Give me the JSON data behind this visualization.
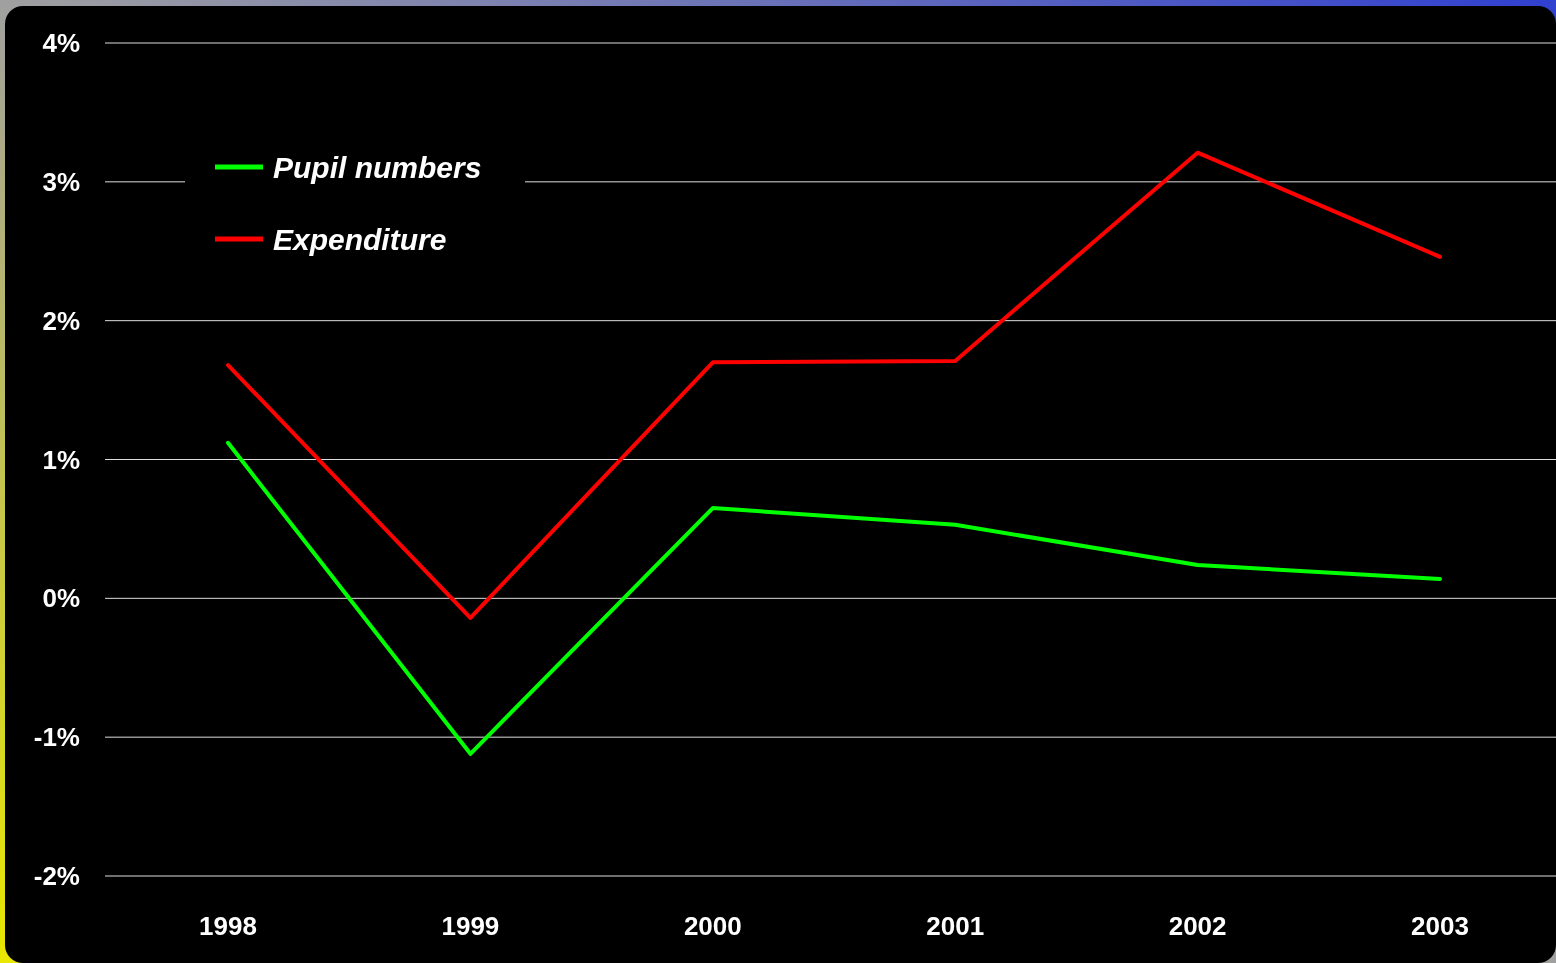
{
  "chart_data": {
    "type": "line",
    "categories": [
      "1998",
      "1999",
      "2000",
      "2001",
      "2002",
      "2003"
    ],
    "series": [
      {
        "name": "Pupil numbers",
        "color": "#00ff00",
        "values": [
          1.12,
          -1.12,
          0.65,
          0.53,
          0.24,
          0.14
        ]
      },
      {
        "name": "Expenditure",
        "color": "#ff0000",
        "values": [
          1.68,
          -0.14,
          1.7,
          1.71,
          3.21,
          2.46
        ]
      }
    ],
    "ylim": [
      -2,
      4
    ],
    "yticks": [
      {
        "value": -2,
        "label": "-2%"
      },
      {
        "value": -1,
        "label": "-1%"
      },
      {
        "value": 0,
        "label": "0%"
      },
      {
        "value": 1,
        "label": "1%"
      },
      {
        "value": 2,
        "label": "2%"
      },
      {
        "value": 3,
        "label": "3%"
      },
      {
        "value": 4,
        "label": "4%"
      }
    ],
    "grid": "y",
    "legend": "top left",
    "marker": "none",
    "line_style": "solid"
  }
}
